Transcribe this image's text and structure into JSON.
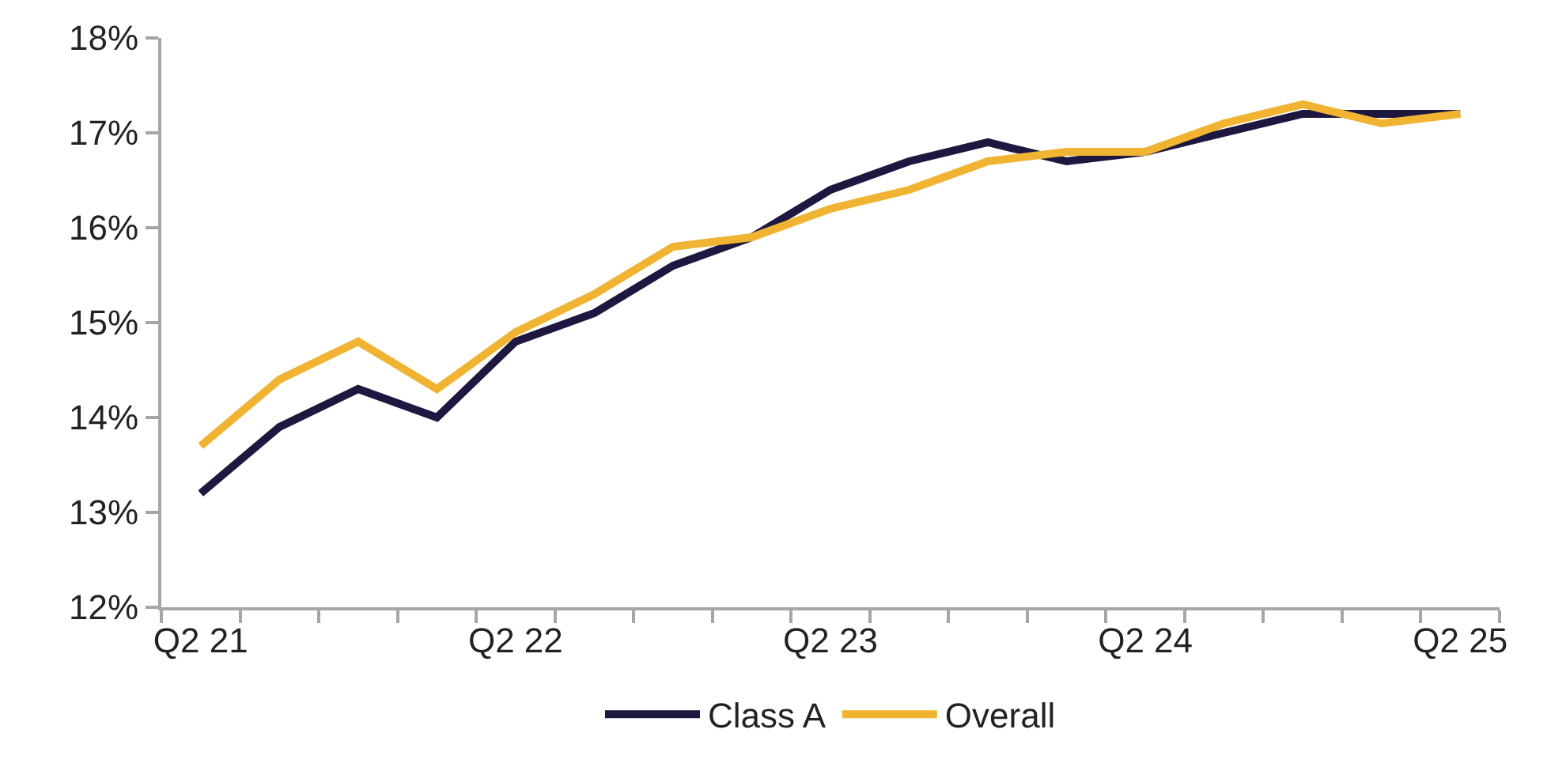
{
  "chart_data": {
    "type": "line",
    "categories": [
      "Q2 21",
      null,
      null,
      null,
      "Q2 22",
      null,
      null,
      null,
      "Q2 23",
      null,
      null,
      null,
      "Q2 24",
      null,
      null,
      null,
      "Q2 25"
    ],
    "series": [
      {
        "name": "Class A",
        "color": "#1e1740",
        "values": [
          13.2,
          13.9,
          14.3,
          14.0,
          14.8,
          15.1,
          15.6,
          15.9,
          16.4,
          16.7,
          16.9,
          16.7,
          16.8,
          17.0,
          17.2,
          17.2,
          17.2
        ]
      },
      {
        "name": "Overall",
        "color": "#f0b432",
        "values": [
          13.7,
          14.4,
          14.8,
          14.3,
          14.9,
          15.3,
          15.8,
          15.9,
          16.2,
          16.4,
          16.7,
          16.8,
          16.8,
          17.1,
          17.3,
          17.1,
          17.2
        ]
      }
    ],
    "ylim": [
      12,
      18
    ],
    "yticks": [
      {
        "value": 12,
        "label": "12%"
      },
      {
        "value": 13,
        "label": "13%"
      },
      {
        "value": 14,
        "label": "14%"
      },
      {
        "value": 15,
        "label": "15%"
      },
      {
        "value": 16,
        "label": "16%"
      },
      {
        "value": 17,
        "label": "17%"
      },
      {
        "value": 18,
        "label": "18%"
      }
    ],
    "legend": "bottom",
    "marker": "none",
    "line_style": "solid"
  }
}
